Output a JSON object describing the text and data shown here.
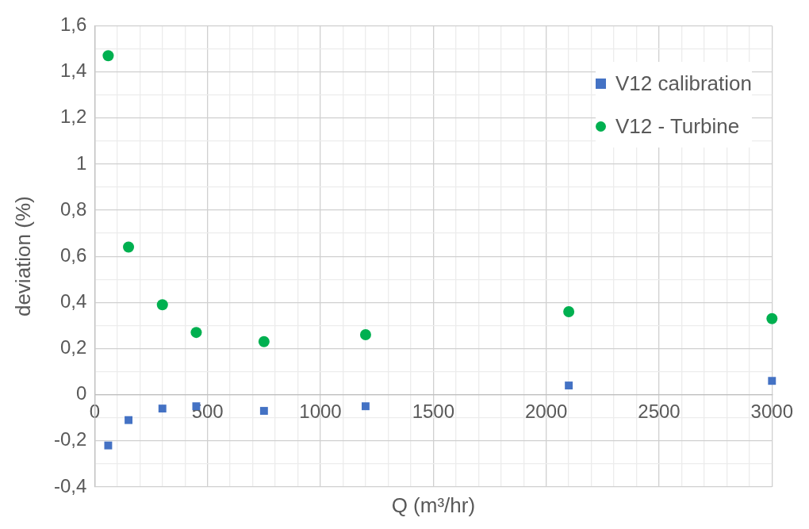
{
  "chart_data": {
    "type": "scatter",
    "xlabel": "Q (m³/hr)",
    "ylabel": "deviation (%)",
    "xlim": [
      0,
      3000
    ],
    "xticks": [
      0,
      {
        "value": 100,
        "label": null
      },
      {
        "value": 200,
        "label": null
      },
      {
        "value": 300,
        "label": null
      },
      {
        "value": 400,
        "label": null
      },
      500,
      {
        "value": 600,
        "label": null
      },
      {
        "value": 700,
        "label": null
      },
      {
        "value": 800,
        "label": null
      },
      {
        "value": 900,
        "label": null
      },
      1000,
      {
        "value": 1100,
        "label": null
      },
      {
        "value": 1200,
        "label": null
      },
      {
        "value": 1300,
        "label": null
      },
      {
        "value": 1400,
        "label": null
      },
      1500,
      {
        "value": 1600,
        "label": null
      },
      {
        "value": 1700,
        "label": null
      },
      {
        "value": 1800,
        "label": null
      },
      {
        "value": 1900,
        "label": null
      },
      2000,
      {
        "value": 2100,
        "label": null
      },
      {
        "value": 2200,
        "label": null
      },
      {
        "value": 2300,
        "label": null
      },
      {
        "value": 2400,
        "label": null
      },
      2500,
      {
        "value": 2600,
        "label": null
      },
      {
        "value": 2700,
        "label": null
      },
      {
        "value": 2800,
        "label": null
      },
      {
        "value": 2900,
        "label": null
      },
      3000
    ],
    "ylim": [
      -0.4,
      1.6
    ],
    "yticks": [
      {
        "value": -0.4,
        "label": "-0,4"
      },
      {
        "value": -0.3,
        "label": null
      },
      {
        "value": -0.2,
        "label": "-0,2"
      },
      {
        "value": -0.1,
        "label": null
      },
      0,
      {
        "value": 0.1,
        "label": null
      },
      {
        "value": 0.2,
        "label": "0,2"
      },
      {
        "value": 0.3,
        "label": null
      },
      {
        "value": 0.4,
        "label": "0,4"
      },
      {
        "value": 0.5,
        "label": null
      },
      {
        "value": 0.6,
        "label": "0,6"
      },
      {
        "value": 0.7,
        "label": null
      },
      {
        "value": 0.8,
        "label": "0,8"
      },
      {
        "value": 0.9,
        "label": null
      },
      1,
      {
        "value": 1.1,
        "label": null
      },
      {
        "value": 1.2,
        "label": "1,2"
      },
      {
        "value": 1.3,
        "label": null
      },
      {
        "value": 1.4,
        "label": "1,4"
      },
      {
        "value": 1.5,
        "label": null
      },
      {
        "value": 1.6,
        "label": "1,6"
      }
    ],
    "grid": true,
    "legend": "top right",
    "series": [
      {
        "name": "V12 calibration",
        "color": "#4472c4",
        "marker": "square",
        "x": [
          60,
          150,
          300,
          450,
          750,
          1200,
          2100,
          3000
        ],
        "values": [
          -0.22,
          -0.11,
          -0.06,
          -0.05,
          -0.07,
          -0.05,
          0.04,
          0.06
        ]
      },
      {
        "name": "V12 - Turbine",
        "color": "#00b050",
        "marker": "circle",
        "x": [
          60,
          150,
          300,
          450,
          750,
          1200,
          2100,
          3000
        ],
        "values": [
          1.47,
          0.64,
          0.39,
          0.27,
          0.23,
          0.26,
          0.36,
          0.33
        ]
      }
    ]
  }
}
